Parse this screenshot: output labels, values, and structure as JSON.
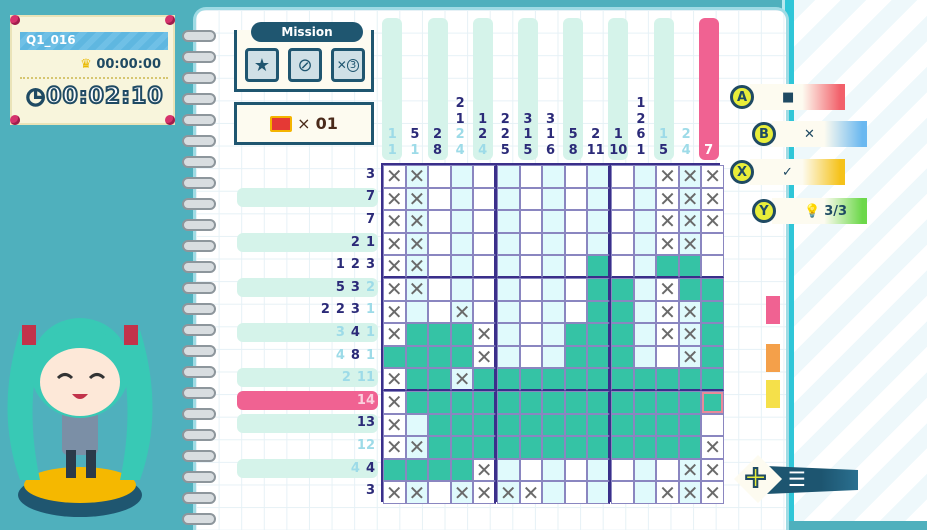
{
  "hud": {
    "puzzle_id": "Q1_016",
    "best_time": "00:00:00",
    "elapsed_time": "00:02:10",
    "best_icon": "crown-icon",
    "timer_icon": "clock-icon"
  },
  "mission": {
    "title": "Mission",
    "icons": [
      "star-burst-icon",
      "no-hint-bulb-icon",
      "mistake-limit-icon"
    ],
    "mistake_badge": "3"
  },
  "reward": {
    "icon": "treasure-chest-icon",
    "times": "×",
    "count": "01"
  },
  "controls": [
    {
      "key": "A",
      "action": "fill-square-icon",
      "glyph": "■",
      "color": "#f2606a"
    },
    {
      "key": "B",
      "action": "cross-icon",
      "glyph": "✕",
      "color": "#6ab8f0"
    },
    {
      "key": "X",
      "action": "check-icon",
      "glyph": "✓",
      "color": "#f5c21a"
    },
    {
      "key": "Y",
      "action": "hint-bulb-icon",
      "glyph": "💡",
      "label": "3/3",
      "color": "#6cd84a"
    }
  ],
  "menu": {
    "plus": "+",
    "icon": "list-menu-icon"
  },
  "colors": {
    "filled": "#35c3a5",
    "highlight": "#f06292",
    "clue": "#2b2a78",
    "clue_done": "#9ddbe8"
  },
  "cursor": {
    "row": 11,
    "col": 15
  },
  "col_clues": [
    [
      {
        "n": "1",
        "d": 1
      },
      {
        "n": "1",
        "d": 1
      }
    ],
    [
      {
        "n": "5"
      },
      {
        "n": "1",
        "d": 1
      }
    ],
    [
      {
        "n": "2"
      },
      {
        "n": "8"
      }
    ],
    [
      {
        "n": "2"
      },
      {
        "n": "1"
      },
      {
        "n": "2",
        "d": 1
      },
      {
        "n": "4",
        "d": 1
      }
    ],
    [
      {
        "n": "1"
      },
      {
        "n": "2"
      },
      {
        "n": "4",
        "d": 1
      }
    ],
    [
      {
        "n": "2"
      },
      {
        "n": "2"
      },
      {
        "n": "5"
      }
    ],
    [
      {
        "n": "3"
      },
      {
        "n": "1"
      },
      {
        "n": "5"
      }
    ],
    [
      {
        "n": "3"
      },
      {
        "n": "1"
      },
      {
        "n": "6"
      }
    ],
    [
      {
        "n": "5"
      },
      {
        "n": "8"
      }
    ],
    [
      {
        "n": "2"
      },
      {
        "n": "11"
      }
    ],
    [
      {
        "n": "1"
      },
      {
        "n": "10"
      }
    ],
    [
      {
        "n": "1"
      },
      {
        "n": "2"
      },
      {
        "n": "6"
      },
      {
        "n": "1"
      }
    ],
    [
      {
        "n": "1",
        "d": 1
      },
      {
        "n": "5"
      }
    ],
    [
      {
        "n": "2",
        "d": 1
      },
      {
        "n": "4",
        "d": 1
      }
    ],
    [
      {
        "n": "7"
      }
    ]
  ],
  "row_clues": [
    [
      {
        "n": "3"
      }
    ],
    [
      {
        "n": "7"
      }
    ],
    [
      {
        "n": "7"
      }
    ],
    [
      {
        "n": "2"
      },
      {
        "n": "1"
      }
    ],
    [
      {
        "n": "1"
      },
      {
        "n": "2"
      },
      {
        "n": "3"
      }
    ],
    [
      {
        "n": "5"
      },
      {
        "n": "3"
      },
      {
        "n": "2",
        "d": 1
      }
    ],
    [
      {
        "n": "2"
      },
      {
        "n": "2"
      },
      {
        "n": "3"
      },
      {
        "n": "1",
        "d": 1
      }
    ],
    [
      {
        "n": "3",
        "d": 1
      },
      {
        "n": "4"
      },
      {
        "n": "1",
        "d": 1
      }
    ],
    [
      {
        "n": "4",
        "d": 1
      },
      {
        "n": "8"
      },
      {
        "n": "1",
        "d": 1
      }
    ],
    [
      {
        "n": "2",
        "d": 1
      },
      {
        "n": "11",
        "d": 1
      }
    ],
    [
      {
        "n": "14"
      }
    ],
    [
      {
        "n": "13"
      }
    ],
    [
      {
        "n": "12",
        "d": 1
      }
    ],
    [
      {
        "n": "4",
        "d": 1
      },
      {
        "n": "4"
      }
    ],
    [
      {
        "n": "3"
      }
    ]
  ],
  "grid": [
    "XX..........XXX",
    "XX..........XXX",
    "XX..........XXX",
    "XX..........XX.",
    "XX.......F..FF.",
    "XX.......FF.XFF",
    "X..X.....FF.XXF",
    "XFFFX...FFF.XXF",
    "FFFFX...FFF..XF",
    "XFFXFFFFFFFFFFF",
    "XFFFFFFFFFFFFFF",
    "X.FFFFFFFFFFFF.",
    "XXFFFFFFFFFFFFX",
    "FFFFX........XX",
    "XX.XXXX.....XXX"
  ]
}
